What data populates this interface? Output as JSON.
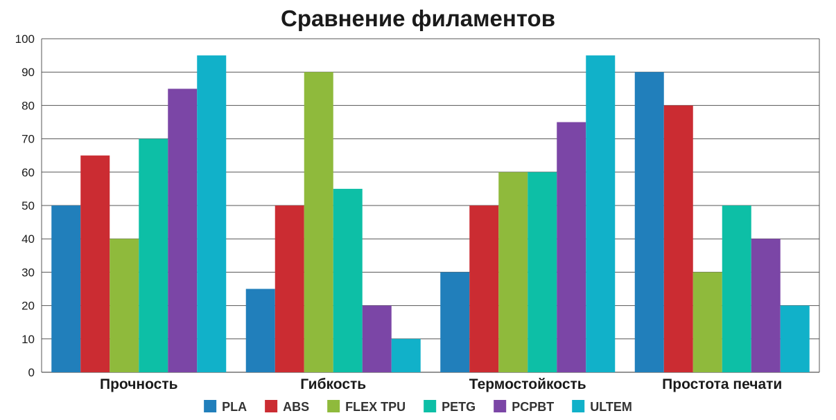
{
  "chart_data": {
    "type": "bar",
    "title": "Сравнение филаментов",
    "xlabel": "",
    "ylabel": "",
    "ylim": [
      0,
      100
    ],
    "yticks": [
      0,
      10,
      20,
      30,
      40,
      50,
      60,
      70,
      80,
      90,
      100
    ],
    "grid": true,
    "legend_position": "bottom",
    "categories": [
      "Прочность",
      "Гибкость",
      "Термостойкость",
      "Простота печати"
    ],
    "series": [
      {
        "name": "PLA",
        "color": "#217fbb",
        "values": [
          50,
          25,
          30,
          90
        ]
      },
      {
        "name": "ABS",
        "color": "#cb2c32",
        "values": [
          65,
          50,
          50,
          80
        ]
      },
      {
        "name": "FLEX TPU",
        "color": "#8fba3c",
        "values": [
          40,
          90,
          60,
          30
        ]
      },
      {
        "name": "PETG",
        "color": "#0dbfa6",
        "values": [
          70,
          55,
          60,
          50
        ]
      },
      {
        "name": "PCPBT",
        "color": "#7b46a6",
        "values": [
          85,
          20,
          75,
          40
        ]
      },
      {
        "name": "ULTEM",
        "color": "#11b1c9",
        "values": [
          95,
          10,
          95,
          20
        ]
      }
    ]
  }
}
